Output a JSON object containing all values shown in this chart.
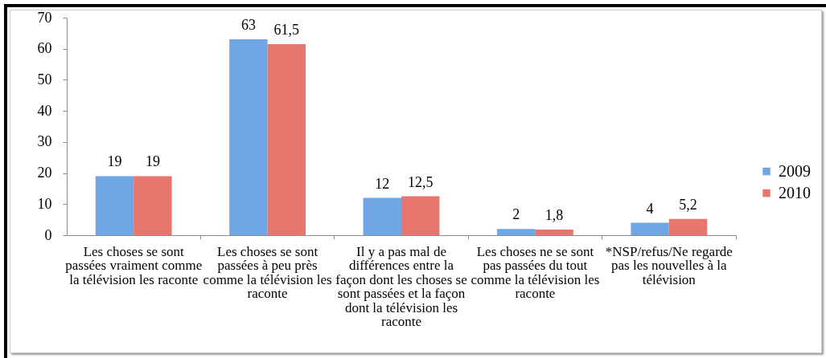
{
  "chart_data": {
    "type": "bar",
    "categories": [
      "Les choses se sont passées vraiment comme la télévision les raconte",
      "Les choses se sont passées à peu près comme la télévision les raconte",
      "Il y a pas mal de différences entre la façon dont les choses se sont passées et la façon dont la télévision les raconte",
      "Les choses ne se sont pas passées du tout comme la télévision les raconte",
      "*NSP/refus/Ne regarde pas les nouvelles à la télévision"
    ],
    "series": [
      {
        "name": "2009",
        "color": "#6fa6e6",
        "values": [
          19,
          63,
          12,
          2,
          4
        ],
        "value_labels": [
          "19",
          "63",
          "12",
          "2",
          "4"
        ]
      },
      {
        "name": "2010",
        "color": "#e8766e",
        "values": [
          19,
          61.5,
          12.5,
          1.8,
          5.2
        ],
        "value_labels": [
          "19",
          "61,5",
          "12,5",
          "1,8",
          "5,2"
        ]
      }
    ],
    "ylim": [
      0,
      70
    ],
    "yticks": [
      0,
      10,
      20,
      30,
      40,
      50,
      60,
      70
    ],
    "legend": "right"
  }
}
